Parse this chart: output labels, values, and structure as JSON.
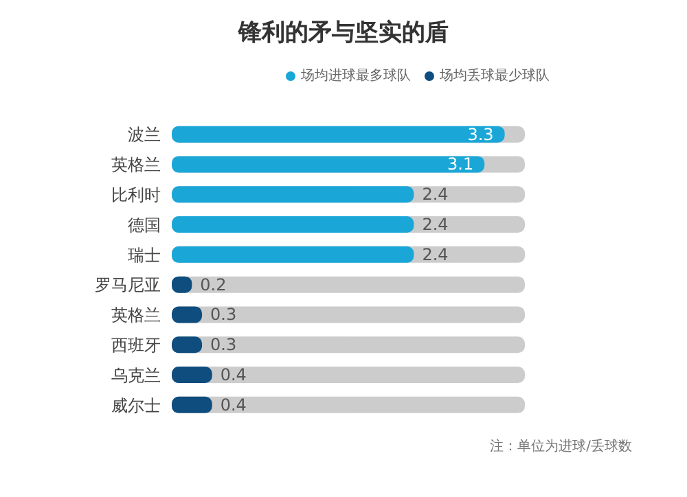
{
  "chart_data": {
    "type": "bar",
    "orientation": "horizontal",
    "stacked": true,
    "title": "锋利的矛与坚实的盾",
    "categories": [
      "波兰",
      "英格兰",
      "比利时",
      "德国",
      "瑞士",
      "罗马尼亚",
      "英格兰",
      "西班牙",
      "乌克兰",
      "威尔士"
    ],
    "series": [
      {
        "name": "场均进球最多球队",
        "color": "#1aa7d8",
        "values": [
          3.3,
          3.1,
          2.4,
          2.4,
          2.4,
          null,
          null,
          null,
          null,
          null
        ]
      },
      {
        "name": "场均丢球最少球队",
        "color": "#0e4d7e",
        "values": [
          null,
          null,
          null,
          null,
          null,
          0.2,
          0.3,
          0.3,
          0.4,
          0.4
        ]
      }
    ],
    "xlim": [
      0,
      3.5
    ],
    "data_labels": true,
    "legend": "top right",
    "tick_labels": "y",
    "annotations": [
      "注：单位为进球/丢球数"
    ]
  }
}
